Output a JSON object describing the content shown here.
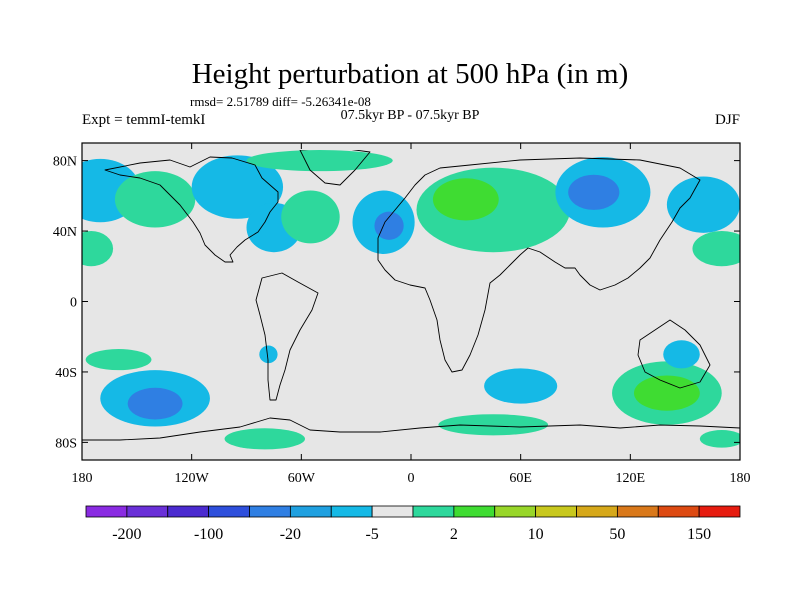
{
  "chart_data": {
    "type": "heatmap",
    "title": "Height perturbation at 500 hPa (in m)",
    "stats_line": "rmsd= 2.51789 diff= -5.26341e-08",
    "subtitle": "07.5kyr BP - 07.5kyr BP",
    "left_label": "Expt = temmI-temkI",
    "right_label": "DJF",
    "x_ticks": [
      {
        "lon": -180,
        "label": "180"
      },
      {
        "lon": -120,
        "label": "120W"
      },
      {
        "lon": -60,
        "label": "60W"
      },
      {
        "lon": 0,
        "label": "0"
      },
      {
        "lon": 60,
        "label": "60E"
      },
      {
        "lon": 120,
        "label": "120E"
      },
      {
        "lon": 180,
        "label": "180"
      }
    ],
    "y_ticks": [
      {
        "lat": 80,
        "label": "80N"
      },
      {
        "lat": 40,
        "label": "40N"
      },
      {
        "lat": 0,
        "label": "0"
      },
      {
        "lat": -40,
        "label": "40S"
      },
      {
        "lat": -80,
        "label": "80S"
      }
    ],
    "xlim": [
      -180,
      180
    ],
    "ylim": [
      -90,
      90
    ],
    "colorbar": {
      "colors": [
        "#8a2be2",
        "#6a30d8",
        "#4b2bd0",
        "#2e4fdc",
        "#2f7fe3",
        "#1fa0e0",
        "#15b9e6",
        "#e6e6e6",
        "#2ed89c",
        "#3fdc32",
        "#98d629",
        "#c8c81e",
        "#d6a81a",
        "#d9781a",
        "#dd4a12",
        "#e61c10"
      ],
      "labels": [
        {
          "boundary": 1,
          "text": "-200"
        },
        {
          "boundary": 3,
          "text": "-100"
        },
        {
          "boundary": 5,
          "text": "-20"
        },
        {
          "boundary": 7,
          "text": "-5"
        },
        {
          "boundary": 9,
          "text": "2"
        },
        {
          "boundary": 11,
          "text": "10"
        },
        {
          "boundary": 13,
          "text": "50"
        },
        {
          "boundary": 15,
          "text": "150"
        }
      ]
    },
    "background_color": "#e6e6e6",
    "regions": [
      {
        "band": "-5",
        "color": "#15b9e6",
        "lon": -170,
        "lat": 63,
        "rlon": 22,
        "rlat": 18
      },
      {
        "band": "10",
        "color": "#3fdc32",
        "lon": -138,
        "lat": 60,
        "rlon": 12,
        "rlat": 8
      },
      {
        "band": "2",
        "color": "#2ed89c",
        "lon": -140,
        "lat": 58,
        "rlon": 22,
        "rlat": 16
      },
      {
        "band": "-5",
        "color": "#15b9e6",
        "lon": -95,
        "lat": 65,
        "rlon": 25,
        "rlat": 18
      },
      {
        "band": "-5",
        "color": "#15b9e6",
        "lon": -75,
        "lat": 42,
        "rlon": 15,
        "rlat": 14
      },
      {
        "band": "2",
        "color": "#2ed89c",
        "lon": -55,
        "lat": 48,
        "rlon": 16,
        "rlat": 15
      },
      {
        "band": "2",
        "color": "#2ed89c",
        "lon": -50,
        "lat": 80,
        "rlon": 40,
        "rlat": 6
      },
      {
        "band": "-5",
        "color": "#15b9e6",
        "lon": -15,
        "lat": 45,
        "rlon": 17,
        "rlat": 18
      },
      {
        "band": "-20",
        "color": "#2f7fe3",
        "lon": -12,
        "lat": 43,
        "rlon": 8,
        "rlat": 8
      },
      {
        "band": "2",
        "color": "#2ed89c",
        "lon": 45,
        "lat": 52,
        "rlon": 42,
        "rlat": 24
      },
      {
        "band": "10",
        "color": "#3fdc32",
        "lon": 30,
        "lat": 58,
        "rlon": 18,
        "rlat": 12
      },
      {
        "band": "-5",
        "color": "#15b9e6",
        "lon": 105,
        "lat": 62,
        "rlon": 26,
        "rlat": 20
      },
      {
        "band": "-20",
        "color": "#2f7fe3",
        "lon": 100,
        "lat": 62,
        "rlon": 14,
        "rlat": 10
      },
      {
        "band": "-5",
        "color": "#15b9e6",
        "lon": 160,
        "lat": 55,
        "rlon": 20,
        "rlat": 16
      },
      {
        "band": "2",
        "color": "#2ed89c",
        "lon": 170,
        "lat": 30,
        "rlon": 16,
        "rlat": 10
      },
      {
        "band": "2",
        "color": "#2ed89c",
        "lon": -175,
        "lat": 30,
        "rlon": 12,
        "rlat": 10
      },
      {
        "band": "-5",
        "color": "#15b9e6",
        "lon": -140,
        "lat": -55,
        "rlon": 30,
        "rlat": 16
      },
      {
        "band": "-20",
        "color": "#2f7fe3",
        "lon": -140,
        "lat": -58,
        "rlon": 15,
        "rlat": 9
      },
      {
        "band": "2",
        "color": "#2ed89c",
        "lon": -160,
        "lat": -33,
        "rlon": 18,
        "rlat": 6
      },
      {
        "band": "-5",
        "color": "#15b9e6",
        "lon": -78,
        "lat": -30,
        "rlon": 5,
        "rlat": 5
      },
      {
        "band": "2",
        "color": "#2ed89c",
        "lon": -80,
        "lat": -78,
        "rlon": 22,
        "rlat": 6
      },
      {
        "band": "-5",
        "color": "#15b9e6",
        "lon": 60,
        "lat": -48,
        "rlon": 20,
        "rlat": 10
      },
      {
        "band": "2",
        "color": "#2ed89c",
        "lon": 45,
        "lat": -70,
        "rlon": 30,
        "rlat": 6
      },
      {
        "band": "2",
        "color": "#2ed89c",
        "lon": 140,
        "lat": -52,
        "rlon": 30,
        "rlat": 18
      },
      {
        "band": "10",
        "color": "#3fdc32",
        "lon": 140,
        "lat": -52,
        "rlon": 18,
        "rlat": 10
      },
      {
        "band": "-5",
        "color": "#15b9e6",
        "lon": 148,
        "lat": -30,
        "rlon": 10,
        "rlat": 8
      },
      {
        "band": "2",
        "color": "#2ed89c",
        "lon": 170,
        "lat": -78,
        "rlon": 12,
        "rlat": 5
      }
    ]
  }
}
